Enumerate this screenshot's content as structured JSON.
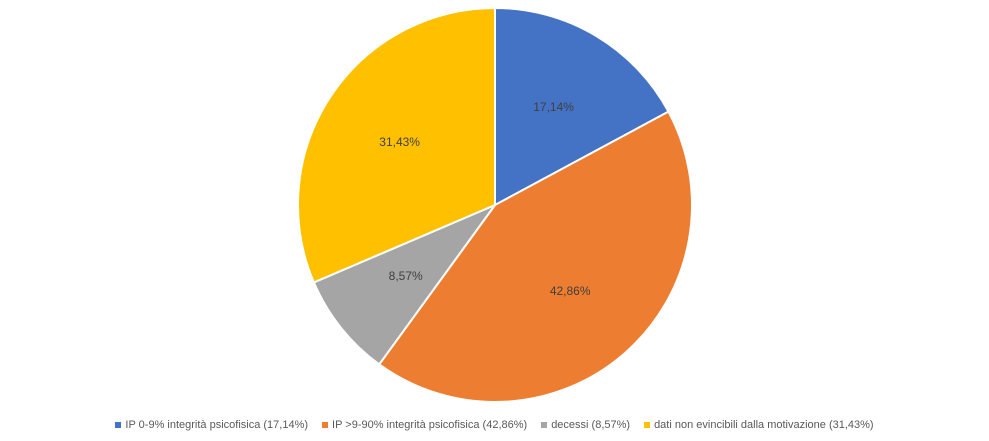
{
  "chart_data": {
    "type": "pie",
    "title": "",
    "slices": [
      {
        "name": "IP 0-9% integrità psicofisica (17,14%)",
        "value": 17.14,
        "label": "17,14%",
        "color": "#4472C4"
      },
      {
        "name": "IP >9-90% integrità psicofisica (42,86%)",
        "value": 42.86,
        "label": "42,86%",
        "color": "#ED7D31"
      },
      {
        "name": "decessi (8,57%)",
        "value": 8.57,
        "label": "8,57%",
        "color": "#A5A5A5"
      },
      {
        "name": "dati non evincibili dalla motivazione (31,43%)",
        "value": 31.43,
        "label": "31,43%",
        "color": "#FFC000"
      }
    ],
    "start_angle": "12 o'clock",
    "direction": "clockwise",
    "legend_position": "bottom"
  }
}
